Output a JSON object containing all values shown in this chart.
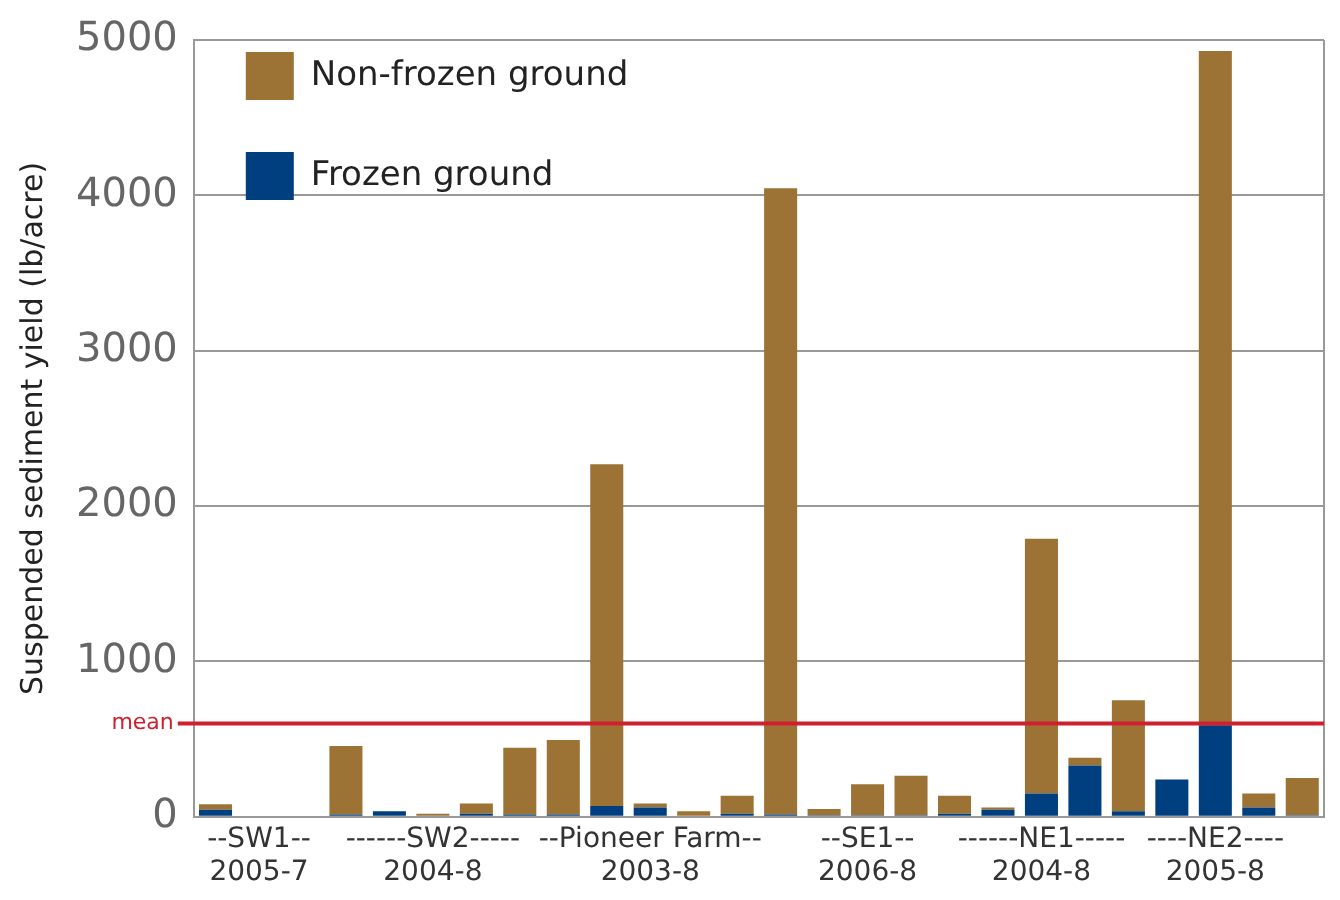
{
  "chart_data": {
    "type": "bar",
    "stacked": true,
    "ylabel": "Suspended sediment yield (lb/acre)",
    "categories": [
      null,
      "--SW1--\n2005-7",
      null,
      null,
      null,
      "------SW2-----\n2004-8",
      null,
      null,
      null,
      null,
      "--Pioneer Farm--\n2003-8",
      null,
      null,
      null,
      null,
      "--SE1--\n2006-8",
      null,
      null,
      null,
      "------NE1-----\n2004-8",
      null,
      null,
      null,
      "----NE2----\n2005-8",
      null,
      null
    ],
    "series": [
      {
        "name": "Frozen ground",
        "color": "#003f7f",
        "values": [
          45,
          0,
          0,
          15,
          35,
          0,
          20,
          15,
          15,
          70,
          60,
          0,
          20,
          15,
          10,
          10,
          10,
          20,
          45,
          150,
          330,
          35,
          240,
          590,
          60,
          10
        ]
      },
      {
        "name": "Non-frozen ground",
        "color": "#9c7335",
        "values": [
          35,
          0,
          0,
          440,
          0,
          20,
          65,
          430,
          480,
          2200,
          25,
          35,
          115,
          4030,
          40,
          200,
          255,
          115,
          15,
          1640,
          50,
          715,
          0,
          4340,
          90,
          240
        ]
      }
    ],
    "ylim": [
      0,
      5000
    ],
    "yticks": [
      0,
      1000,
      2000,
      3000,
      4000,
      5000
    ],
    "grid": "y",
    "legend": "top left",
    "ref_lines": [
      {
        "axis": "y",
        "value": 600,
        "label": "mean",
        "color": "#d0202f"
      }
    ]
  }
}
